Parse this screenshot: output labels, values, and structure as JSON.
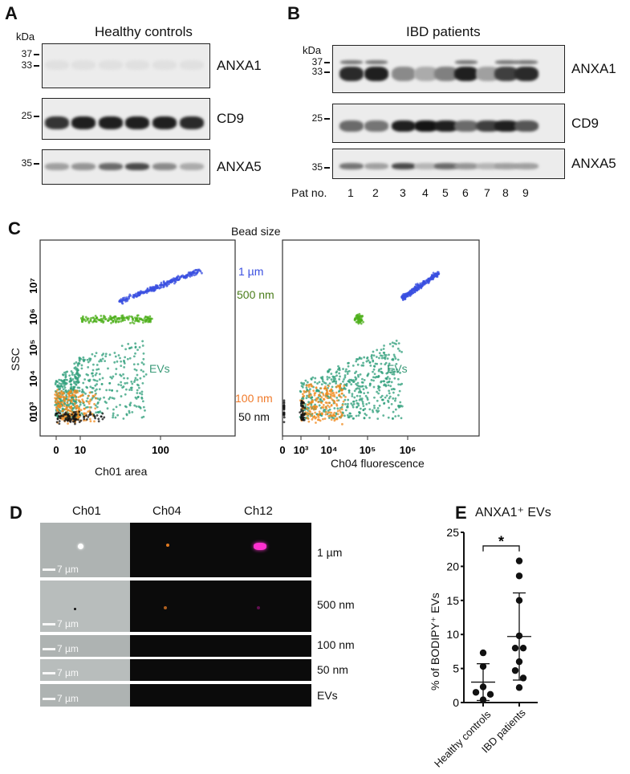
{
  "panel_labels": {
    "a": "A",
    "b": "B",
    "c": "C",
    "d": "D",
    "e": "E"
  },
  "blot_a": {
    "title": "Healthy controls",
    "kda": "kDa",
    "markers": [
      "37",
      "33",
      "25",
      "35"
    ],
    "proteins": [
      "ANXA1",
      "CD9",
      "ANXA5"
    ],
    "lanes": 6,
    "intensity": {
      "ANXA1": [
        0.05,
        0.05,
        0.05,
        0.05,
        0.05,
        0.05
      ],
      "CD9": [
        0.85,
        0.95,
        0.95,
        0.95,
        0.95,
        0.9
      ],
      "ANXA5": [
        0.35,
        0.4,
        0.6,
        0.75,
        0.45,
        0.3
      ]
    }
  },
  "blot_b": {
    "title": "IBD patients",
    "kda": "kDa",
    "markers": [
      "37",
      "33",
      "25",
      "35"
    ],
    "proteins": [
      "ANXA1",
      "CD9",
      "ANXA5"
    ],
    "lane_header": "Pat no.",
    "lanes": [
      "1",
      "2",
      "3",
      "4",
      "5",
      "6",
      "7",
      "8",
      "9"
    ],
    "intensity": {
      "ANXA1": [
        0.9,
        0.95,
        0.45,
        0.3,
        0.5,
        0.95,
        0.35,
        0.8,
        0.9
      ],
      "CD9": [
        0.6,
        0.55,
        0.95,
        1.0,
        0.95,
        0.6,
        0.8,
        0.95,
        0.7
      ],
      "ANXA5": [
        0.55,
        0.35,
        0.75,
        0.25,
        0.6,
        0.4,
        0.25,
        0.35,
        0.35
      ]
    }
  },
  "chart_data": [
    {
      "type": "scatter",
      "panel": "C-left",
      "title": "Bead size",
      "xlabel": "Ch01 area",
      "ylabel": "SSC",
      "xticks": [
        "0",
        "10",
        "100"
      ],
      "yticks": [
        "0",
        "10³",
        "10⁴",
        "10⁵",
        "10⁶",
        "10⁷"
      ],
      "series": [
        {
          "name": "1 µm",
          "color": "#3a4fe0",
          "log_x_range": [
            1.5,
            2.5
          ],
          "log_y_range": [
            6.5,
            7.5
          ],
          "n": 260
        },
        {
          "name": "500 nm",
          "color": "#4caf1a",
          "log_x_range": [
            1.0,
            1.9
          ],
          "log_y_range": [
            5.85,
            6.0
          ],
          "n": 160
        },
        {
          "name": "EVs",
          "color": "#2e9e7a",
          "log_x_range": [
            0,
            1.8
          ],
          "log_y_range": [
            2.7,
            5.3
          ],
          "n": 520
        },
        {
          "name": "100 nm",
          "color": "#f08a1c",
          "log_x_range": [
            0,
            1.2
          ],
          "log_y_range": [
            2.6,
            3.6
          ],
          "n": 200
        },
        {
          "name": "50 nm",
          "color": "#111111",
          "log_x_range": [
            0,
            1.3
          ],
          "log_y_range": [
            2.6,
            2.9
          ],
          "n": 90
        }
      ]
    },
    {
      "type": "scatter",
      "panel": "C-right",
      "xlabel": "Ch04 fluorescence",
      "ylabel": "SSC",
      "xticks": [
        "0",
        "10³",
        "10⁴",
        "10⁵",
        "10⁶"
      ],
      "series": [
        {
          "name": "1 µm",
          "color": "#3a4fe0",
          "log_x_range": [
            5.8,
            6.8
          ],
          "log_y_range": [
            6.6,
            7.4
          ],
          "n": 260
        },
        {
          "name": "500 nm",
          "color": "#4caf1a",
          "log_x_range": [
            4.5,
            4.7
          ],
          "log_y_range": [
            5.85,
            6.05
          ],
          "n": 50
        },
        {
          "name": "EVs",
          "color": "#2e9e7a",
          "log_x_range": [
            3,
            5.8
          ],
          "log_y_range": [
            2.7,
            5.3
          ],
          "n": 520
        },
        {
          "name": "100 nm",
          "color": "#f08a1c",
          "log_x_range": [
            3,
            4.2
          ],
          "log_y_range": [
            2.6,
            3.8
          ],
          "n": 200
        },
        {
          "name": "50 nm",
          "color": "#111111",
          "log_x_range": [
            2.95,
            3.1
          ],
          "log_y_range": [
            2.6,
            3.3
          ],
          "n": 60
        }
      ]
    },
    {
      "type": "scatter",
      "panel": "E",
      "title": "ANXA1⁺ EVs",
      "ylabel": "% of BODIPY⁺ EVs",
      "ylim": [
        0,
        25
      ],
      "yticks": [
        "0",
        "5",
        "10",
        "15",
        "20",
        "25"
      ],
      "categories": [
        "Healthy controls",
        "IBD patients"
      ],
      "series": [
        {
          "name": "Healthy controls",
          "values": [
            7.3,
            5.3,
            2.3,
            1.5,
            1.2,
            0.4
          ],
          "mean": 3.0,
          "sd_low": 0.3,
          "sd_high": 5.7
        },
        {
          "name": "IBD patients",
          "values": [
            20.8,
            18.6,
            15.0,
            9.8,
            8.0,
            8.0,
            6.0,
            4.7,
            3.6,
            2.2
          ],
          "mean": 9.7,
          "sd_low": 3.3,
          "sd_high": 16.1
        }
      ],
      "significance": "*"
    }
  ],
  "bead_labels": {
    "one_um": "1 µm",
    "five_hundred": "500 nm",
    "evs": "EVs",
    "hundred": "100 nm",
    "fifty": "50 nm"
  },
  "imaging": {
    "channels": [
      "Ch01",
      "Ch04",
      "Ch12"
    ],
    "scale_bar": "7 µm",
    "rows": [
      "1 µm",
      "500 nm",
      "100 nm",
      "50 nm",
      "EVs"
    ]
  }
}
